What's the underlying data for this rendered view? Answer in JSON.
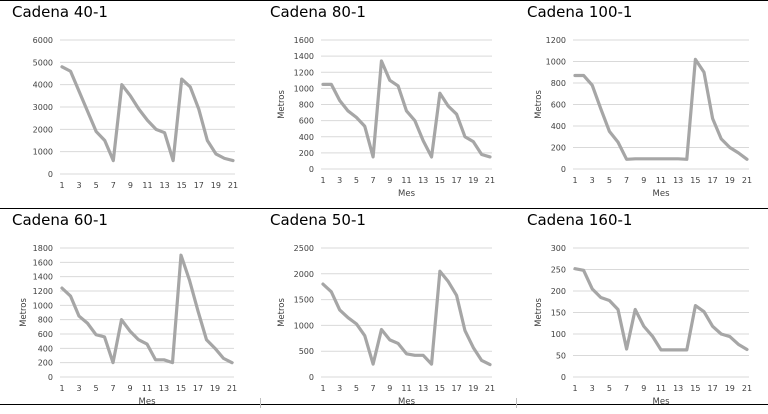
{
  "chart_data": [
    {
      "type": "line",
      "title": "Cadena 40-1",
      "xlabel": "",
      "ylabel": "",
      "x": [
        1,
        2,
        3,
        4,
        5,
        6,
        7,
        8,
        9,
        10,
        11,
        12,
        13,
        14,
        15,
        16,
        17,
        18,
        19,
        20,
        21
      ],
      "x_ticks": [
        "1",
        "3",
        "5",
        "7",
        "9",
        "11",
        "13",
        "15",
        "17",
        "19",
        "21"
      ],
      "y_ticks": [
        "0",
        "1000",
        "2000",
        "3000",
        "4000",
        "5000",
        "6000"
      ],
      "ylim": [
        0,
        6000
      ],
      "grid": true,
      "color": "#a6a6a6",
      "series": [
        {
          "values": [
            4800,
            4600,
            3700,
            2800,
            1900,
            1500,
            600,
            4000,
            3500,
            2900,
            2400,
            2000,
            1850,
            600,
            4250,
            3900,
            2900,
            1500,
            900,
            700,
            600
          ]
        }
      ]
    },
    {
      "type": "line",
      "title": "Cadena 80-1",
      "xlabel": "Mes",
      "ylabel": "Metros",
      "x": [
        1,
        2,
        3,
        4,
        5,
        6,
        7,
        8,
        9,
        10,
        11,
        12,
        13,
        14,
        15,
        16,
        17,
        18,
        19,
        20,
        21
      ],
      "x_ticks": [
        "1",
        "3",
        "5",
        "7",
        "9",
        "11",
        "13",
        "15",
        "17",
        "19",
        "21"
      ],
      "y_ticks": [
        "0",
        "200",
        "400",
        "600",
        "800",
        "1000",
        "1200",
        "1400",
        "1600"
      ],
      "ylim": [
        0,
        1600
      ],
      "grid": true,
      "color": "#a6a6a6",
      "series": [
        {
          "values": [
            1050,
            1050,
            850,
            720,
            640,
            530,
            150,
            1340,
            1100,
            1030,
            720,
            600,
            350,
            150,
            940,
            780,
            680,
            400,
            340,
            180,
            150
          ]
        }
      ]
    },
    {
      "type": "line",
      "title": "Cadena 100-1",
      "xlabel": "Mes",
      "ylabel": "Metros",
      "x": [
        1,
        2,
        3,
        4,
        5,
        6,
        7,
        8,
        9,
        10,
        11,
        12,
        13,
        14,
        15,
        16,
        17,
        18,
        19,
        20,
        21
      ],
      "x_ticks": [
        "1",
        "3",
        "5",
        "7",
        "9",
        "11",
        "13",
        "15",
        "17",
        "19",
        "21"
      ],
      "y_ticks": [
        "0",
        "200",
        "400",
        "600",
        "800",
        "1000",
        "1200"
      ],
      "ylim": [
        0,
        1200
      ],
      "grid": true,
      "color": "#a6a6a6",
      "series": [
        {
          "values": [
            870,
            870,
            780,
            560,
            350,
            250,
            90,
            95,
            95,
            95,
            95,
            95,
            95,
            90,
            1020,
            900,
            470,
            280,
            200,
            150,
            90
          ]
        }
      ]
    },
    {
      "type": "line",
      "title": "Cadena 60-1",
      "xlabel": "Mes",
      "ylabel": "Metros",
      "x": [
        1,
        2,
        3,
        4,
        5,
        6,
        7,
        8,
        9,
        10,
        11,
        12,
        13,
        14,
        15,
        16,
        17,
        18,
        19,
        20,
        21
      ],
      "x_ticks": [
        "1",
        "3",
        "5",
        "7",
        "9",
        "11",
        "13",
        "15",
        "17",
        "19",
        "21"
      ],
      "y_ticks": [
        "0",
        "200",
        "400",
        "600",
        "800",
        "1000",
        "1200",
        "1400",
        "1600",
        "1800"
      ],
      "ylim": [
        0,
        1800
      ],
      "grid": true,
      "color": "#a6a6a6",
      "series": [
        {
          "values": [
            1240,
            1130,
            850,
            750,
            590,
            560,
            200,
            800,
            640,
            520,
            460,
            240,
            240,
            200,
            1700,
            1350,
            920,
            520,
            400,
            260,
            200
          ]
        }
      ]
    },
    {
      "type": "line",
      "title": "Cadena 50-1",
      "xlabel": "Mes",
      "ylabel": "Metros",
      "x": [
        1,
        2,
        3,
        4,
        5,
        6,
        7,
        8,
        9,
        10,
        11,
        12,
        13,
        14,
        15,
        16,
        17,
        18,
        19,
        20,
        21
      ],
      "x_ticks": [
        "1",
        "3",
        "5",
        "7",
        "9",
        "11",
        "13",
        "15",
        "17",
        "19",
        "21"
      ],
      "y_ticks": [
        "0",
        "500",
        "1000",
        "1500",
        "2000",
        "2500"
      ],
      "ylim": [
        0,
        2500
      ],
      "grid": true,
      "color": "#a6a6a6",
      "series": [
        {
          "values": [
            1800,
            1650,
            1300,
            1150,
            1030,
            800,
            250,
            920,
            720,
            650,
            450,
            420,
            420,
            250,
            2050,
            1850,
            1580,
            900,
            570,
            320,
            240
          ]
        }
      ]
    },
    {
      "type": "line",
      "title": "Cadena 160-1",
      "xlabel": "Mes",
      "ylabel": "Metros",
      "x": [
        1,
        2,
        3,
        4,
        5,
        6,
        7,
        8,
        9,
        10,
        11,
        12,
        13,
        14,
        15,
        16,
        17,
        18,
        19,
        20,
        21
      ],
      "x_ticks": [
        "1",
        "3",
        "5",
        "7",
        "9",
        "11",
        "13",
        "15",
        "17",
        "19",
        "21"
      ],
      "y_ticks": [
        "0",
        "50",
        "100",
        "150",
        "200",
        "250",
        "300"
      ],
      "ylim": [
        0,
        300
      ],
      "grid": true,
      "color": "#a6a6a6",
      "series": [
        {
          "values": [
            252,
            248,
            205,
            185,
            178,
            157,
            65,
            157,
            118,
            95,
            63,
            63,
            63,
            63,
            166,
            152,
            118,
            100,
            94,
            76,
            64
          ]
        }
      ]
    }
  ]
}
